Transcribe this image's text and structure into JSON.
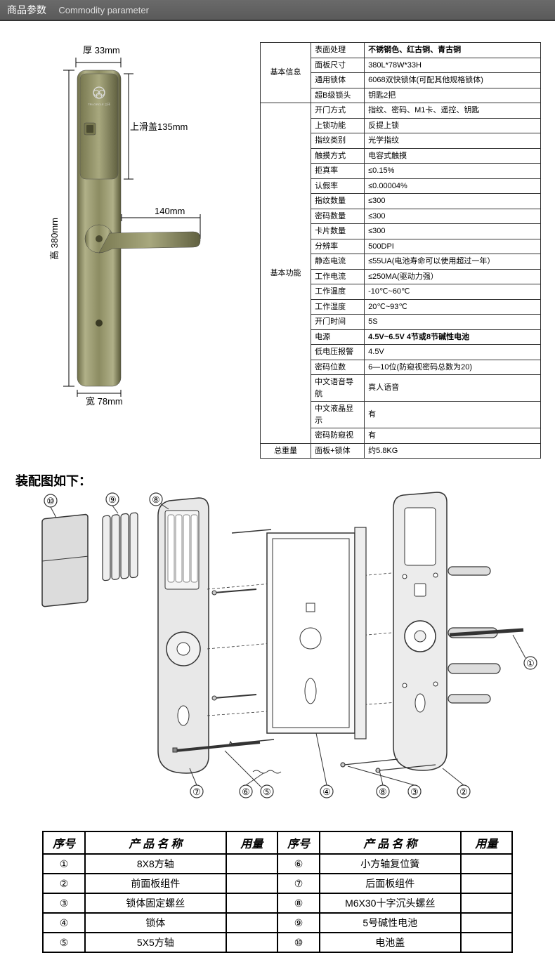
{
  "header": {
    "cn": "商品参数",
    "en": "Commodity parameter"
  },
  "dims": {
    "thickness_label": "厚 33mm",
    "slider_label": "上滑盖135mm",
    "height_label": "高 380mm",
    "width_label": "宽 78mm",
    "handle_label": "140mm",
    "brand_top": "TRI-CIRCLE 三环"
  },
  "spec": {
    "group1_label": "基本信息",
    "group2_label": "基本功能",
    "group3_label": "总重量",
    "rows1": [
      {
        "k": "表面处理",
        "v": "不锈钢色、红古铜、青古铜",
        "bold": true
      },
      {
        "k": "面板尺寸",
        "v": "380L*78W*33H"
      },
      {
        "k": "通用锁体",
        "v": "6068双快锁体(可配其他规格锁体)"
      },
      {
        "k": "超B级锁头",
        "v": "钥匙2把"
      }
    ],
    "rows2": [
      {
        "k": "开门方式",
        "v": "指纹、密码、M1卡、遥控、钥匙"
      },
      {
        "k": "上锁功能",
        "v": "反提上锁"
      },
      {
        "k": "指纹类别",
        "v": "光学指纹"
      },
      {
        "k": "触摸方式",
        "v": "电容式触摸"
      },
      {
        "k": "拒真率",
        "v": "≤0.15%"
      },
      {
        "k": "认假率",
        "v": "≤0.00004%"
      },
      {
        "k": "指纹数量",
        "v": "≤300"
      },
      {
        "k": "密码数量",
        "v": "≤300"
      },
      {
        "k": "卡片数量",
        "v": "≤300"
      },
      {
        "k": "分辨率",
        "v": "500DPI"
      },
      {
        "k": "静态电流",
        "v": "≤55UA(电池寿命可以使用超过一年）"
      },
      {
        "k": "工作电流",
        "v": "≤250MA(驱动力强）"
      },
      {
        "k": "工作温度",
        "v": "-10℃~60℃"
      },
      {
        "k": "工作湿度",
        "v": "20℃~93℃"
      },
      {
        "k": "开门时间",
        "v": "5S"
      },
      {
        "k": "电源",
        "v": "4.5V~6.5V 4节或8节碱性电池",
        "bold": true
      },
      {
        "k": "低电压报警",
        "v": "4.5V"
      },
      {
        "k": "密码位数",
        "v": "6—10位(防窥视密码总数为20)"
      },
      {
        "k": "中文语音导航",
        "v": "真人语音"
      },
      {
        "k": "中文液晶显示",
        "v": "有"
      },
      {
        "k": "密码防窥视",
        "v": "有"
      }
    ],
    "rows3": [
      {
        "k": "面板+锁体",
        "v": "约5.8KG"
      }
    ]
  },
  "assembly": {
    "title": "装配图如下：",
    "callouts": [
      "①",
      "②",
      "③",
      "④",
      "⑤",
      "⑥",
      "⑦",
      "⑧",
      "⑨",
      "⑩"
    ]
  },
  "parts": {
    "headers": {
      "no": "序号",
      "name": "产 品 名 称",
      "qty": "用量"
    },
    "left": [
      {
        "n": "①",
        "name": "8X8方轴",
        "q": ""
      },
      {
        "n": "②",
        "name": "前面板组件",
        "q": ""
      },
      {
        "n": "③",
        "name": "锁体固定螺丝",
        "q": ""
      },
      {
        "n": "④",
        "name": "锁体",
        "q": ""
      },
      {
        "n": "⑤",
        "name": "5X5方轴",
        "q": ""
      }
    ],
    "right": [
      {
        "n": "⑥",
        "name": "小方轴复位簧",
        "q": ""
      },
      {
        "n": "⑦",
        "name": "后面板组件",
        "q": ""
      },
      {
        "n": "⑧",
        "name": "M6X30十字沉头螺丝",
        "q": ""
      },
      {
        "n": "⑨",
        "name": "5号碱性电池",
        "q": ""
      },
      {
        "n": "⑩",
        "name": "电池盖",
        "q": ""
      }
    ]
  },
  "colors": {
    "lock_body": "#8a8a5e",
    "lock_body_light": "#b8b890",
    "lock_body_dark": "#5a5a3a",
    "outline": "#333333"
  }
}
